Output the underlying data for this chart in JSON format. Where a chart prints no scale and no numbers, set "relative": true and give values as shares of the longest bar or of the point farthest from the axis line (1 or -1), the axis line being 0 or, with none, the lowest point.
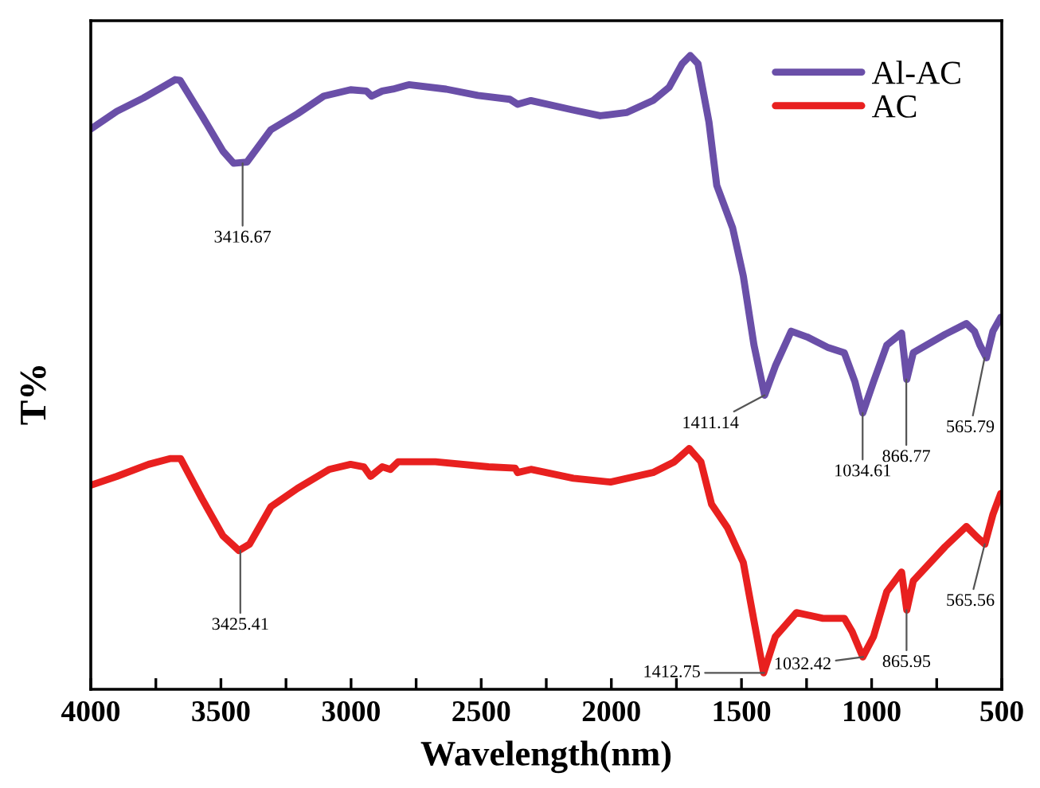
{
  "chart_data": {
    "type": "line",
    "relative": true,
    "xlabel": "Wavelength(nm)",
    "ylabel": "T%",
    "xlim": [
      4000,
      500
    ],
    "xticks": [
      4000,
      {
        "value": 3750,
        "label": null
      },
      3500,
      {
        "value": 3250,
        "label": null
      },
      3000,
      {
        "value": 2750,
        "label": null
      },
      2500,
      {
        "value": 2250,
        "label": null
      },
      2000,
      {
        "value": 1750,
        "label": null
      },
      1500,
      {
        "value": 1250,
        "label": null
      },
      1000,
      {
        "value": 750,
        "label": null
      },
      500
    ],
    "legend": "top right",
    "grid": false,
    "marker": "none",
    "line_style": "solid",
    "series": [
      {
        "name": "Al-AC",
        "color": "#6a4fa8",
        "x": [
          4000,
          3900,
          3798,
          3726,
          3676,
          3657,
          3573,
          3492,
          3451,
          3400,
          3308,
          3206,
          3105,
          3002,
          2941,
          2921,
          2880,
          2839,
          2778,
          2635,
          2513,
          2390,
          2360,
          2309,
          2146,
          2043,
          1942,
          1840,
          1778,
          1728,
          1697,
          1667,
          1625,
          1595,
          1534,
          1493,
          1452,
          1411,
          1370,
          1309,
          1248,
          1166,
          1105,
          1064,
          1034,
          993,
          942,
          885,
          865,
          840,
          718,
          636,
          605,
          585,
          559,
          534,
          504
        ],
        "values": [
          0.884,
          0.912,
          0.933,
          0.95,
          0.962,
          0.961,
          0.905,
          0.849,
          0.83,
          0.832,
          0.883,
          0.908,
          0.936,
          0.946,
          0.944,
          0.936,
          0.944,
          0.947,
          0.954,
          0.947,
          0.937,
          0.931,
          0.923,
          0.929,
          0.914,
          0.905,
          0.91,
          0.929,
          0.95,
          0.987,
          1.0,
          0.987,
          0.895,
          0.795,
          0.728,
          0.652,
          0.543,
          0.464,
          0.51,
          0.565,
          0.556,
          0.539,
          0.531,
          0.485,
          0.436,
          0.485,
          0.543,
          0.562,
          0.489,
          0.531,
          0.56,
          0.577,
          0.565,
          0.544,
          0.523,
          0.565,
          0.587
        ]
      },
      {
        "name": "AC",
        "color": "#e8201f",
        "x": [
          4000,
          3900,
          3778,
          3696,
          3655,
          3573,
          3492,
          3431,
          3390,
          3308,
          3206,
          3084,
          3002,
          2951,
          2925,
          2880,
          2849,
          2819,
          2676,
          2472,
          2370,
          2360,
          2309,
          2146,
          2003,
          1840,
          1758,
          1701,
          1656,
          1615,
          1554,
          1493,
          1452,
          1415,
          1370,
          1289,
          1187,
          1105,
          1075,
          1034,
          993,
          942,
          885,
          865,
          840,
          718,
          636,
          595,
          565,
          534,
          504
        ],
        "values": [
          0.322,
          0.336,
          0.355,
          0.364,
          0.364,
          0.301,
          0.242,
          0.219,
          0.229,
          0.288,
          0.317,
          0.347,
          0.355,
          0.351,
          0.336,
          0.351,
          0.347,
          0.359,
          0.359,
          0.351,
          0.349,
          0.342,
          0.347,
          0.333,
          0.327,
          0.342,
          0.359,
          0.38,
          0.359,
          0.292,
          0.255,
          0.2,
          0.108,
          0.026,
          0.083,
          0.121,
          0.112,
          0.112,
          0.091,
          0.051,
          0.083,
          0.154,
          0.185,
          0.125,
          0.171,
          0.225,
          0.257,
          0.24,
          0.229,
          0.276,
          0.309
        ]
      }
    ],
    "annotations": [
      {
        "text": "3416.67",
        "x": 3416.67,
        "y": 0.83
      },
      {
        "text": "1411.14",
        "x": 1411.14,
        "y": 0.464
      },
      {
        "text": "1034.61",
        "x": 1034.61,
        "y": 0.436
      },
      {
        "text": "866.77",
        "x": 866.77,
        "y": 0.489
      },
      {
        "text": "565.79",
        "x": 565.79,
        "y": 0.523
      },
      {
        "text": "3425.41",
        "x": 3425.41,
        "y": 0.219
      },
      {
        "text": "1412.75",
        "x": 1412.75,
        "y": 0.026
      },
      {
        "text": "1032.42",
        "x": 1032.42,
        "y": 0.051
      },
      {
        "text": "865.95",
        "x": 865.95,
        "y": 0.125
      },
      {
        "text": "565.56",
        "x": 565.56,
        "y": 0.229
      }
    ]
  }
}
